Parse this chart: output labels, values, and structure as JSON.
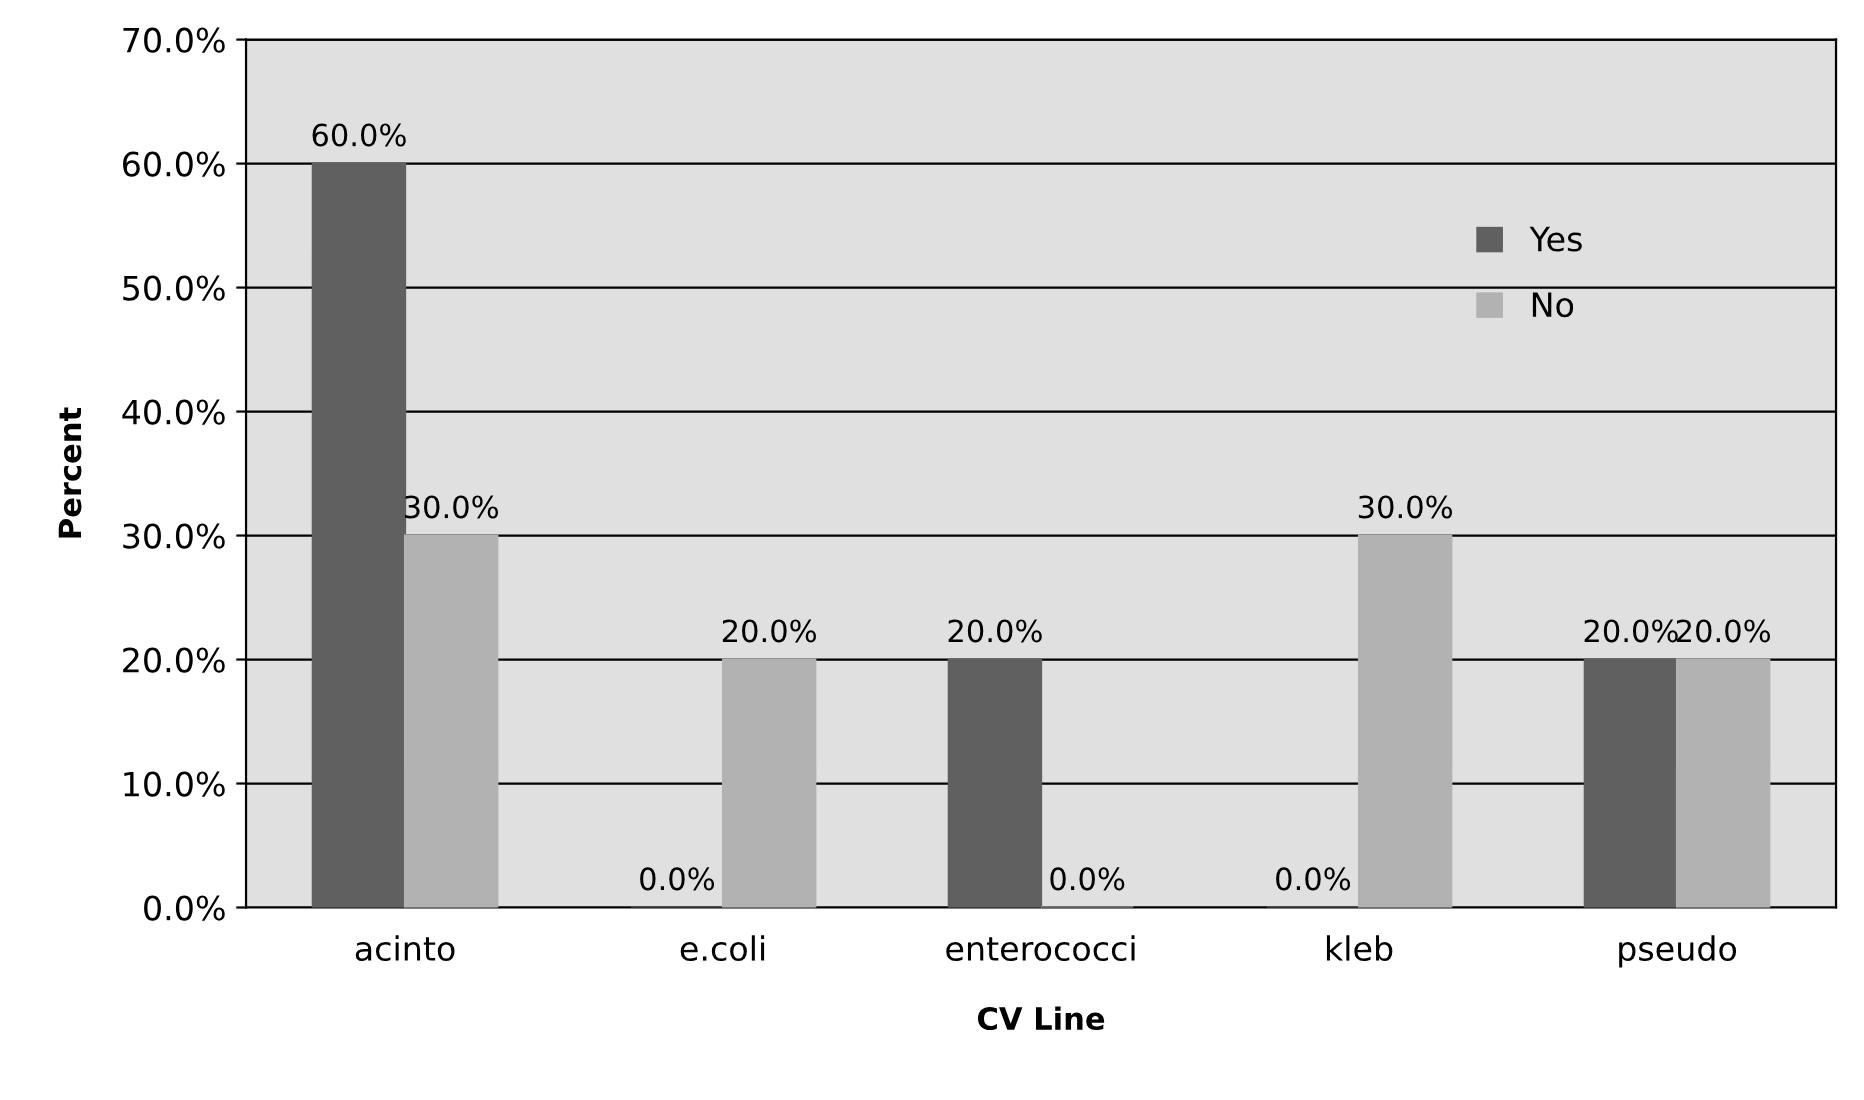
{
  "chart_data": {
    "type": "bar",
    "xlabel": "CV Line",
    "ylabel": "Percent",
    "categories": [
      "acinto",
      "e.coli",
      "enterococci",
      "kleb",
      "pseudo"
    ],
    "series": [
      {
        "name": "Yes",
        "color": "#606060",
        "values": [
          60,
          0,
          20,
          0,
          20
        ],
        "value_labels": [
          "60.0%",
          "0.0%",
          "20.0%",
          "0.0%",
          "20.0%"
        ]
      },
      {
        "name": "No",
        "color": "#b2b2b2",
        "values": [
          30,
          20,
          0,
          30,
          20
        ],
        "value_labels": [
          "30.0%",
          "20.0%",
          "0.0%",
          "30.0%",
          "20.0%"
        ]
      }
    ],
    "ylim": [
      0,
      70
    ],
    "yticks": [
      {
        "value": 0,
        "label": "0.0%"
      },
      {
        "value": 10,
        "label": "10.0%"
      },
      {
        "value": 20,
        "label": "20.0%"
      },
      {
        "value": 30,
        "label": "30.0%"
      },
      {
        "value": 40,
        "label": "40.0%"
      },
      {
        "value": 50,
        "label": "50.0%"
      },
      {
        "value": 60,
        "label": "60.0%"
      },
      {
        "value": 70,
        "label": "70.0%"
      }
    ],
    "grid": "y",
    "legend": "top right"
  }
}
